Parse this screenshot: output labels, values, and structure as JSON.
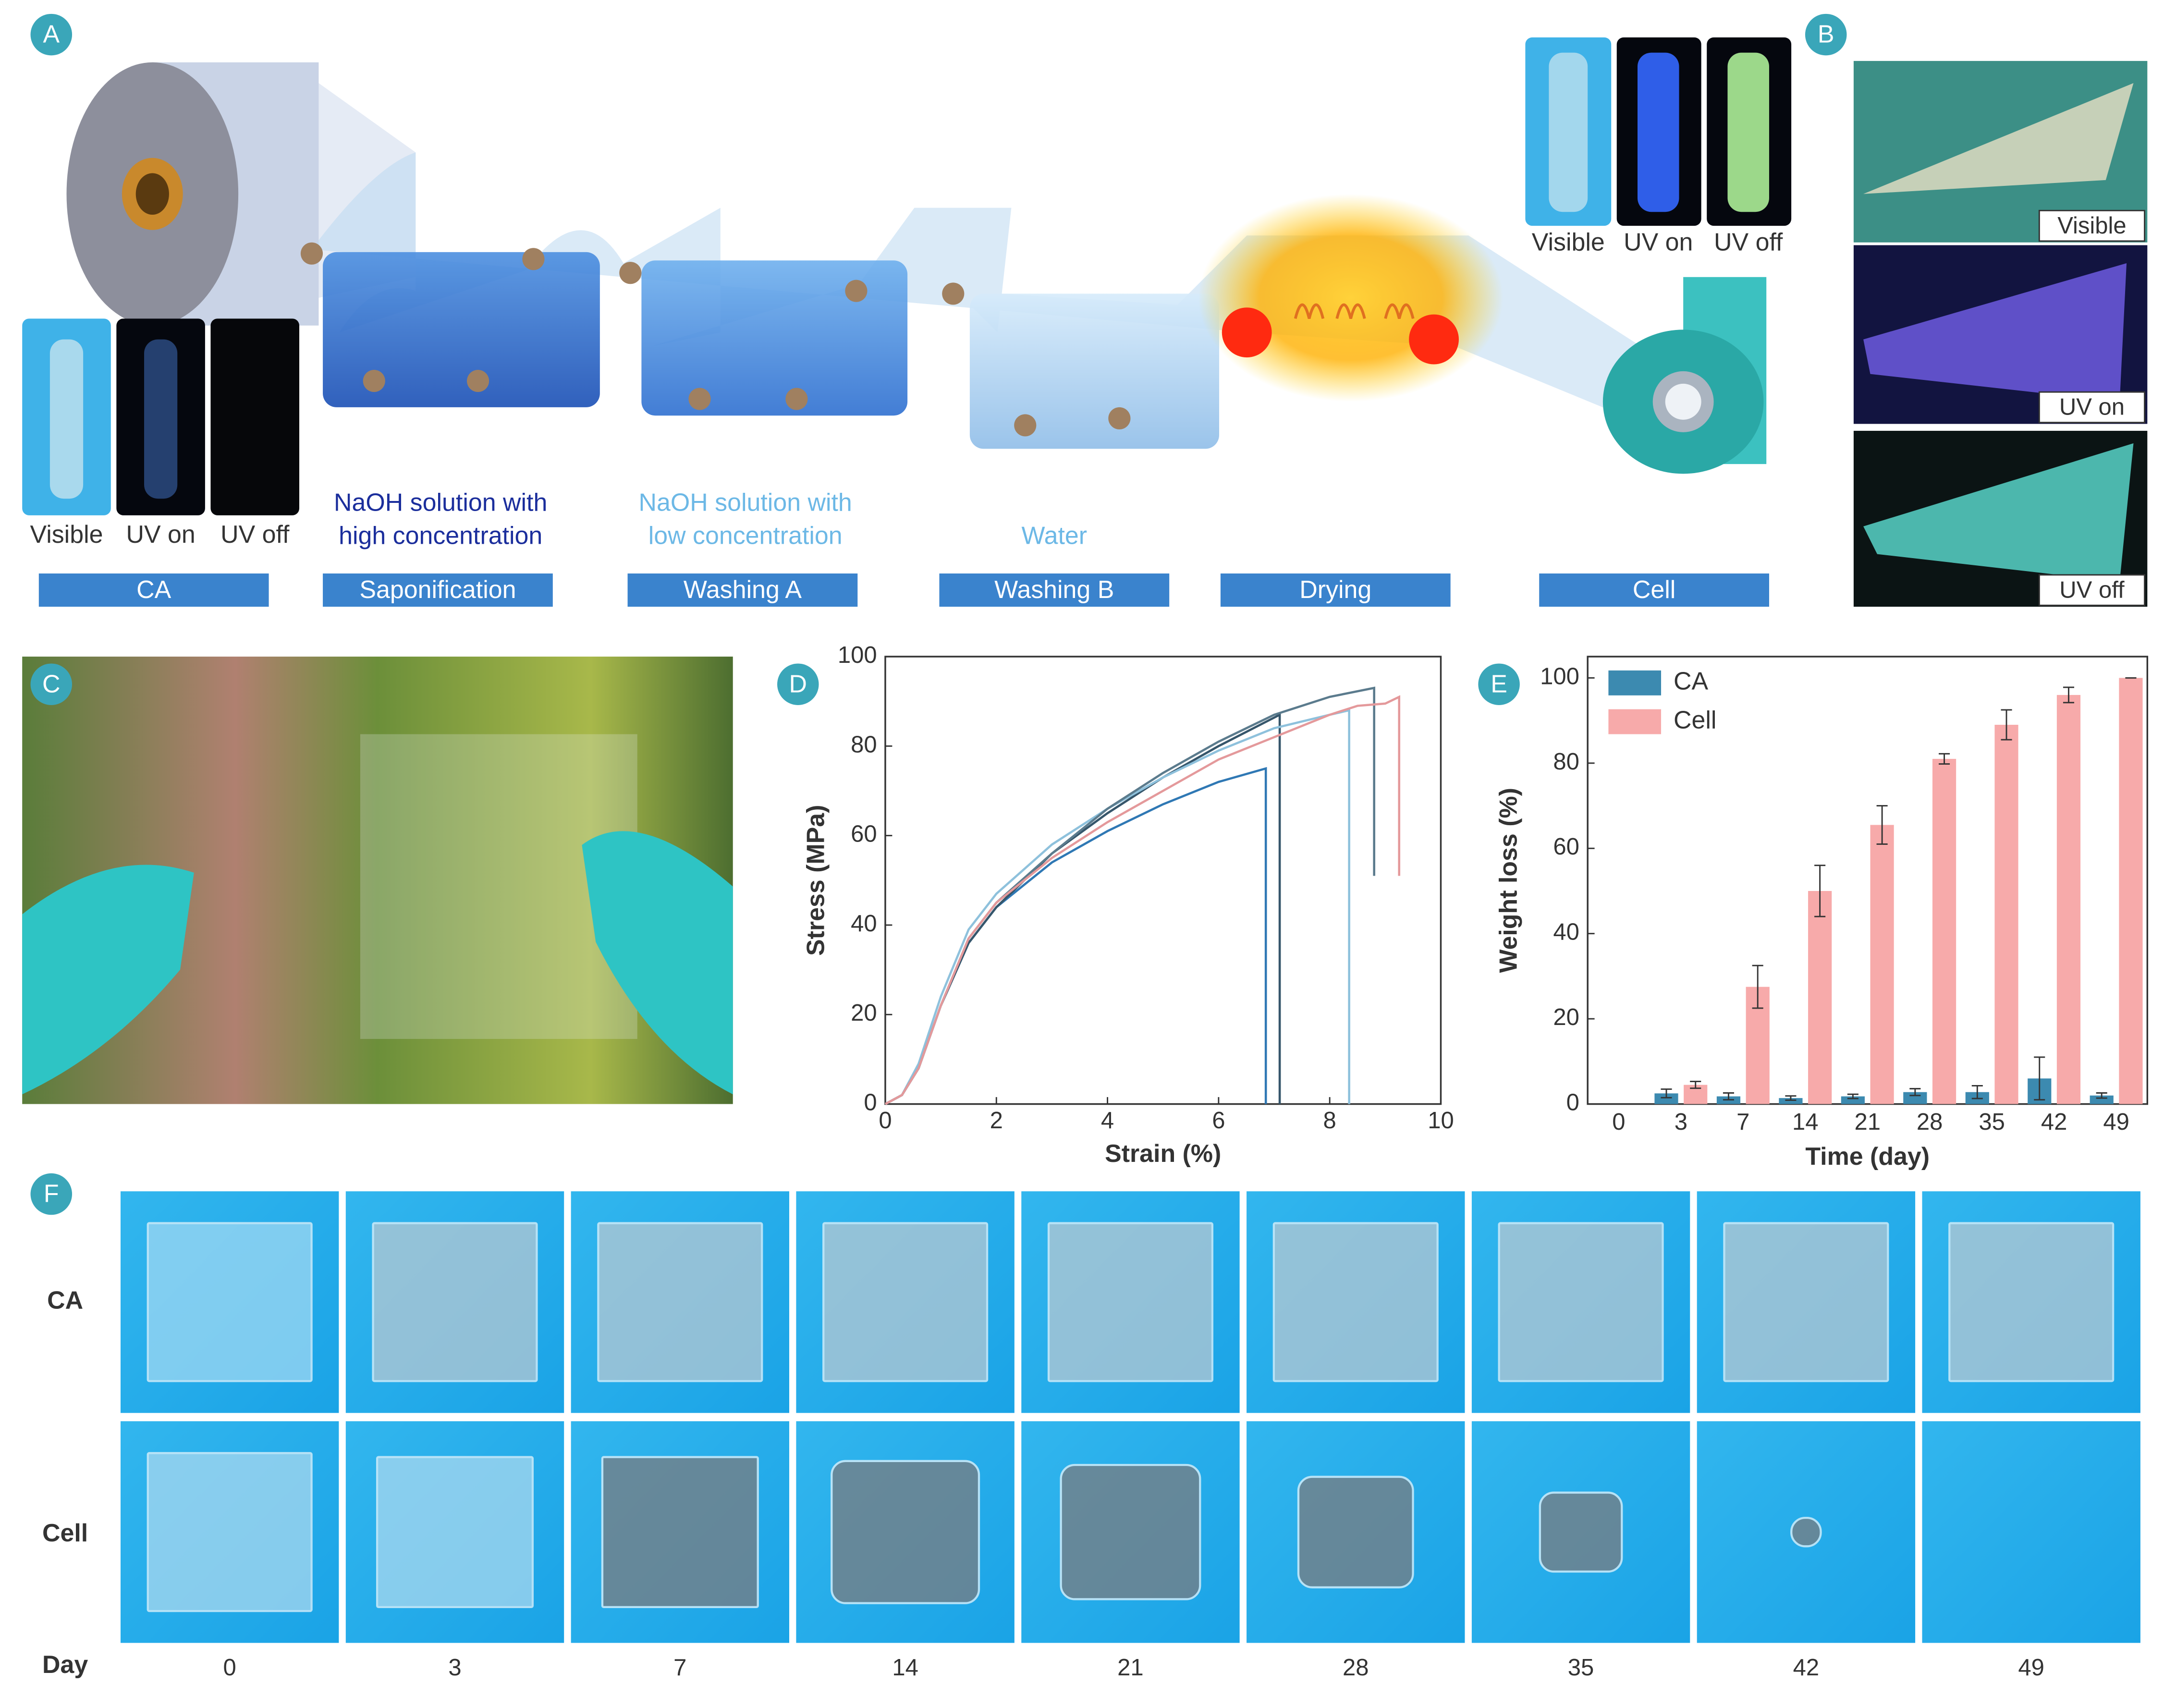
{
  "panel_labels": [
    "A",
    "B",
    "C",
    "D",
    "E",
    "F"
  ],
  "panel_a": {
    "ca_sample_labels": [
      "Visible",
      "UV on",
      "UV off"
    ],
    "cell_sample_labels": [
      "Visible",
      "UV on",
      "UV off"
    ],
    "solutions": [
      [
        "NaOH solution with",
        "high concentration"
      ],
      [
        "NaOH solution with",
        "low concentration"
      ],
      [
        "Water"
      ]
    ],
    "steps": [
      "CA",
      "Saponification",
      "Washing A",
      "Washing B",
      "Drying",
      "Cell"
    ]
  },
  "panel_b": {
    "labels": [
      "Visible",
      "UV on",
      "UV off"
    ]
  },
  "panel_f": {
    "row_labels": [
      "CA",
      "Cell"
    ],
    "day_label": "Day",
    "days": [
      0,
      3,
      7,
      14,
      21,
      28,
      35,
      42,
      49
    ]
  },
  "chart_data": [
    {
      "type": "line",
      "xlabel": "Strain (%)",
      "ylabel": "Stress (MPa)",
      "xlim": [
        0,
        10
      ],
      "xticks": [
        0,
        2,
        4,
        6,
        8,
        10
      ],
      "ylim": [
        0,
        100
      ],
      "yticks": [
        0,
        20,
        40,
        60,
        80,
        100
      ],
      "series": [
        {
          "color": "#2f78b4",
          "x": [
            0,
            0.3,
            0.6,
            1,
            1.5,
            2,
            3,
            4,
            5,
            6,
            6.85,
            6.85
          ],
          "values": [
            0,
            2,
            8,
            22,
            36,
            44,
            54,
            61,
            67,
            72,
            75,
            0
          ]
        },
        {
          "color": "#36566b",
          "x": [
            0,
            0.3,
            0.6,
            1,
            1.5,
            2,
            3,
            4,
            5,
            6,
            7.1,
            7.1
          ],
          "values": [
            0,
            2,
            8,
            22,
            36,
            44,
            56,
            65,
            73,
            80,
            87,
            0
          ]
        },
        {
          "color": "#8ec1dc",
          "x": [
            0,
            0.3,
            0.6,
            1,
            1.5,
            2,
            3,
            4,
            5,
            6,
            7,
            8,
            8.35,
            8.35
          ],
          "values": [
            0,
            2,
            9,
            24,
            39,
            47,
            58,
            66,
            73,
            79,
            84,
            87,
            88,
            0
          ]
        },
        {
          "color": "#5b7b8d",
          "x": [
            0,
            0.3,
            0.6,
            1,
            1.5,
            2,
            3,
            4,
            5,
            6,
            7,
            8,
            8.8,
            8.8
          ],
          "values": [
            0,
            2,
            8,
            22,
            37,
            45,
            56,
            66,
            74,
            81,
            87,
            91,
            93,
            51
          ]
        },
        {
          "color": "#e4999b",
          "x": [
            0,
            0.3,
            0.6,
            1,
            1.5,
            2,
            3,
            4,
            5,
            6,
            7,
            8,
            8.5,
            9,
            9.25,
            9.25
          ],
          "values": [
            0,
            2,
            8,
            22,
            37,
            45,
            55,
            63,
            70,
            77,
            82,
            87,
            89,
            89.5,
            91,
            51
          ]
        }
      ]
    },
    {
      "type": "bar",
      "xlabel": "Time (day)",
      "ylabel": "Weight loss (%)",
      "categories": [
        "0",
        "3",
        "7",
        "14",
        "21",
        "28",
        "35",
        "42",
        "49"
      ],
      "ylim": [
        0,
        105
      ],
      "yticks": [
        0,
        20,
        40,
        60,
        80,
        100
      ],
      "legend": "upper-left",
      "series": [
        {
          "name": "CA",
          "color": "#3c8ab0",
          "values": [
            0,
            2.5,
            1.8,
            1.4,
            1.8,
            2.8,
            2.8,
            6,
            2
          ],
          "errors": [
            0,
            1,
            0.8,
            0.5,
            0.5,
            0.8,
            1.5,
            5,
            0.6
          ]
        },
        {
          "name": "Cell",
          "color": "#f7aaaa",
          "values": [
            0,
            4.5,
            27.5,
            50,
            65.5,
            81,
            89,
            96,
            100
          ],
          "errors": [
            0,
            0.8,
            5,
            6,
            4.5,
            1.2,
            3.5,
            1.8,
            0
          ]
        }
      ]
    }
  ]
}
